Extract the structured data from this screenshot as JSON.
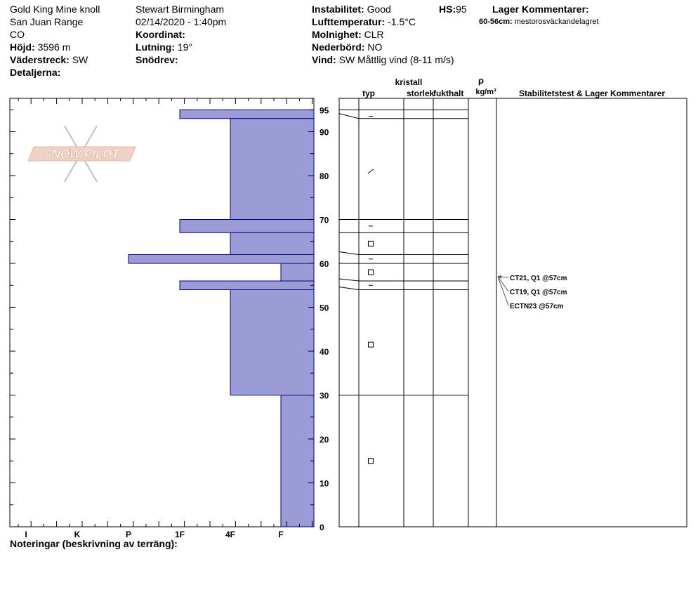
{
  "header": {
    "location": "Gold King Mine knoll",
    "range": "San Juan Range",
    "state": "CO",
    "elevation_label": "Höjd:",
    "elevation": "3596 m",
    "aspect_label": "Väderstreck:",
    "aspect": "SW",
    "details_label": "Detaljerna:",
    "observer": "Stewart Birmingham",
    "datetime": "02/14/2020 - 1:40pm",
    "coord_label": "Koordinat:",
    "slope_label": "Lutning:",
    "slope": "19°",
    "drift_label": "Snödrev:",
    "stability_label": "Instabilitet:",
    "stability": "Good",
    "hs_label": "HS:",
    "hs": "95",
    "airtemp_label": "Lufttemperatur:",
    "airtemp": "-1.5°C",
    "sky_label": "Molnighet:",
    "sky": "CLR",
    "precip_label": "Nederbörd:",
    "precip": "NO",
    "wind_label": "Vind:",
    "wind": "SW  Måttlig vind (8-11 m/s)",
    "layer_comments_title": "Lager Kommentarer:",
    "layer_comment_range": "60-56cm:",
    "layer_comment_text": "mestorosväckandelagret"
  },
  "columns": {
    "typ": "typ",
    "kristall": "kristall",
    "storlek": "storlek",
    "fukthalt": "fukthalt",
    "rho": "ρ",
    "density_unit": "kg/m³",
    "stability_comments": "Stabilitetstest & Lager Kommentarer"
  },
  "footer": {
    "notes_label": "Noteringar (beskrivning av terräng):"
  },
  "logo_text": "SNOW PILOT",
  "chart_data": {
    "type": "bar",
    "orientation": "horizontal",
    "x_tick_labels": [
      "I",
      "K",
      "P",
      "1F",
      "4F",
      "F"
    ],
    "y_tick_labels": [
      "0",
      "10",
      "20",
      "30",
      "40",
      "50",
      "60",
      "70",
      "80",
      "90",
      "95"
    ],
    "ylim": [
      0,
      95
    ],
    "hardness_layers": [
      {
        "top": 95,
        "bottom": 93,
        "hardness": "1F"
      },
      {
        "top": 93,
        "bottom": 70,
        "hardness": "4F"
      },
      {
        "top": 70,
        "bottom": 67,
        "hardness": "1F"
      },
      {
        "top": 67,
        "bottom": 62,
        "hardness": "4F"
      },
      {
        "top": 62,
        "bottom": 60,
        "hardness": "P"
      },
      {
        "top": 60,
        "bottom": 56,
        "hardness": "F"
      },
      {
        "top": 56,
        "bottom": 54,
        "hardness": "1F"
      },
      {
        "top": 54,
        "bottom": 30,
        "hardness": "4F"
      },
      {
        "top": 30,
        "bottom": 0,
        "hardness": "F"
      }
    ],
    "layer_boundaries": [
      95,
      93,
      70,
      67,
      62,
      60,
      56,
      54,
      30,
      0
    ],
    "grain_symbols": [
      {
        "depth": 93.5,
        "symbol": "–"
      },
      {
        "depth": 81,
        "symbol": "⁄"
      },
      {
        "depth": 68.5,
        "symbol": "–"
      },
      {
        "depth": 64.5,
        "symbol": "□"
      },
      {
        "depth": 61,
        "symbol": "–"
      },
      {
        "depth": 58,
        "symbol": "□"
      },
      {
        "depth": 55,
        "symbol": "–"
      },
      {
        "depth": 41.5,
        "symbol": "□"
      },
      {
        "depth": 15,
        "symbol": "□"
      }
    ],
    "stability_tests": [
      {
        "label": "CT21, Q1 @57cm",
        "depth": 57
      },
      {
        "label": "CT19, Q1 @57cm",
        "depth": 57
      },
      {
        "label": "ECTN23 @57cm",
        "depth": 57
      }
    ],
    "colors": {
      "bar_fill": "#9b9bd6",
      "bar_stroke": "#00008b"
    }
  }
}
